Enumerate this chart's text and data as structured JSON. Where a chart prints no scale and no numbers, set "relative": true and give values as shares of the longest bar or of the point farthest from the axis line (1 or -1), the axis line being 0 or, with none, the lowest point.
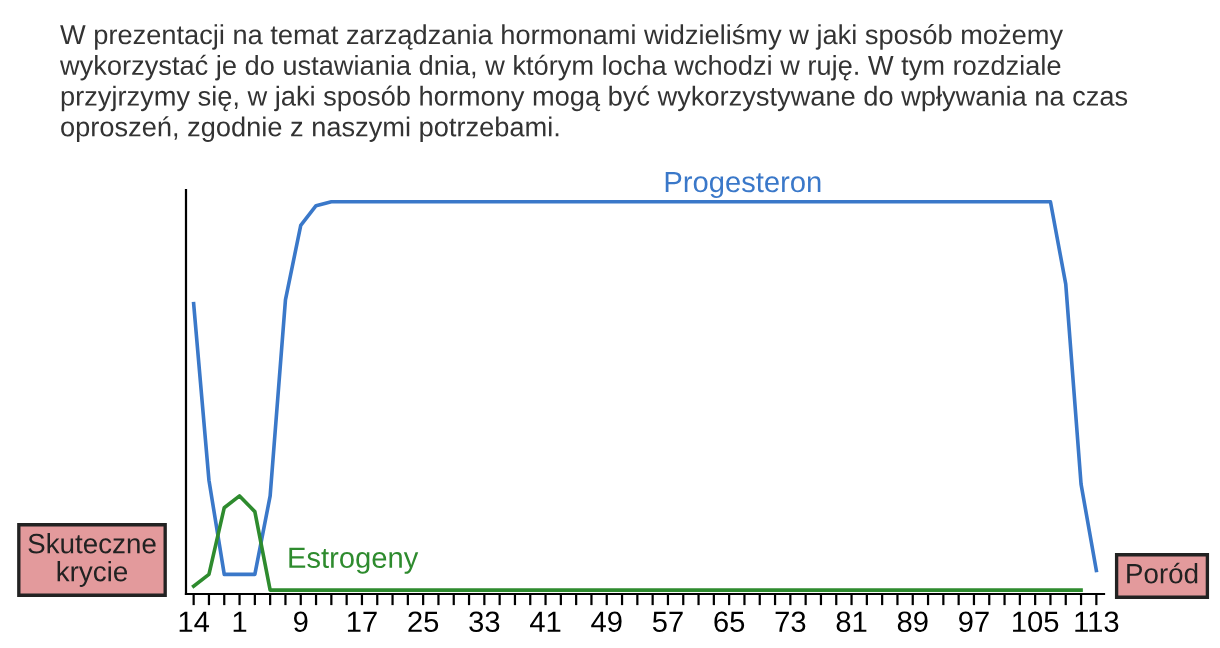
{
  "chart_data": {
    "type": "line",
    "title": "W prezentacji na temat zarządzania hormonami widzieliśmy w jaki sposób możemy\nwykorzystać je do ustawiania dnia, w którym locha wchodzi w ruję. W tym rozdziale\nprzyjrzymy się, w jaki sposób hormony mogą być wykorzystywane do wpływania na czas\noproszeń, zgodnie z naszymi potrzebami.",
    "annotations": [
      "Skuteczne\nkrycie",
      "Poród"
    ],
    "categories": [
      "14",
      null,
      null,
      "1",
      null,
      null,
      null,
      "9",
      null,
      null,
      null,
      "17",
      null,
      null,
      null,
      "25",
      null,
      null,
      null,
      "33",
      null,
      null,
      null,
      "41",
      null,
      null,
      null,
      "49",
      null,
      null,
      null,
      "57",
      null,
      null,
      null,
      "65",
      null,
      null,
      null,
      "73",
      null,
      null,
      null,
      "81",
      null,
      null,
      null,
      "89",
      null,
      null,
      null,
      "97",
      null,
      null,
      null,
      "105",
      null,
      null,
      null,
      "113"
    ],
    "relative": true,
    "tick_labels": "x",
    "grid": false,
    "legend": false,
    "series": [
      {
        "name": "Progesteron",
        "color": "#3a78c9",
        "values": [
          0.74,
          0.29,
          0.05,
          0.05,
          0.05,
          0.25,
          0.75,
          0.94,
          0.99,
          1,
          1,
          1,
          1,
          1,
          1,
          1,
          1,
          1,
          1,
          1,
          1,
          1,
          1,
          1,
          1,
          1,
          1,
          1,
          1,
          1,
          1,
          1,
          1,
          1,
          1,
          1,
          1,
          1,
          1,
          1,
          1,
          1,
          1,
          1,
          1,
          1,
          1,
          1,
          1,
          1,
          1,
          1,
          1,
          1,
          1,
          1,
          1,
          0.79,
          0.28,
          0.06
        ]
      },
      {
        "name": "Estrogeny",
        "color": "#2e8b2e",
        "values": [
          0.02,
          0.05,
          0.22,
          0.25,
          0.21,
          0.01,
          0.01,
          0.01,
          0.01,
          0.01,
          0.01,
          0.01,
          0.01,
          0.01,
          0.01,
          0.01,
          0.01,
          0.01,
          0.01,
          0.01,
          0.01,
          0.01,
          0.01,
          0.01,
          0.01,
          0.01,
          0.01,
          0.01,
          0.01,
          0.01,
          0.01,
          0.01,
          0.01,
          0.01,
          0.01,
          0.01,
          0.01,
          0.01,
          0.01,
          0.01,
          0.01,
          0.01,
          0.01,
          0.01,
          0.01,
          0.01,
          0.01,
          0.01,
          0.01,
          0.01,
          0.01,
          0.01,
          0.01,
          0.01,
          0.01,
          0.01,
          0.01,
          0.01,
          0.01,
          null
        ]
      }
    ]
  }
}
